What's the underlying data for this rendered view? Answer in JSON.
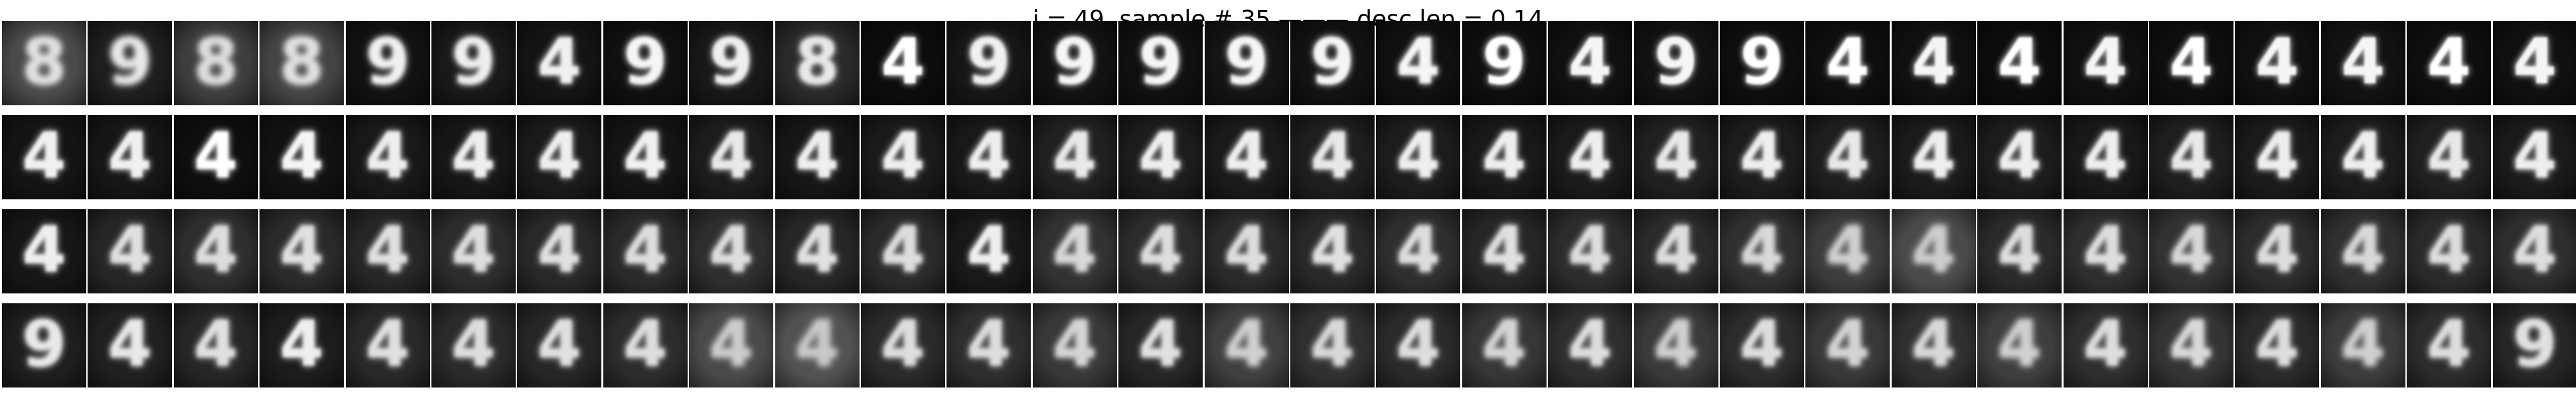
{
  "header": {
    "title": "i = 49, sample # 35 ——— desc len = 0.14"
  },
  "grid": {
    "rows": 4,
    "columns": 30,
    "tiles": [
      [
        {
          "glyph": "8",
          "background": "#4a4a4a",
          "ink": "#e0e0e0",
          "blur": 0.45
        },
        {
          "glyph": "9",
          "background": "#1e1e1e",
          "ink": "#e8e8e8",
          "blur": 0.5
        },
        {
          "glyph": "8",
          "background": "#3e3e3e",
          "ink": "#dddddd",
          "blur": 0.45
        },
        {
          "glyph": "8",
          "background": "#444444",
          "ink": "#e0e0e0",
          "blur": 0.45
        },
        {
          "glyph": "9",
          "background": "#121212",
          "ink": "#f0f0f0",
          "blur": 0.35
        },
        {
          "glyph": "9",
          "background": "#181818",
          "ink": "#eeeeee",
          "blur": 0.35
        },
        {
          "glyph": "4",
          "background": "#141414",
          "ink": "#f0f0f0",
          "blur": 0.3
        },
        {
          "glyph": "9",
          "background": "#101010",
          "ink": "#f5f5f5",
          "blur": 0.3
        },
        {
          "glyph": "9",
          "background": "#181818",
          "ink": "#eeeeee",
          "blur": 0.3
        },
        {
          "glyph": "8",
          "background": "#2a2a2a",
          "ink": "#e8e8e8",
          "blur": 0.35
        },
        {
          "glyph": "4",
          "background": "#0c0c0c",
          "ink": "#ffffff",
          "blur": 0.2
        },
        {
          "glyph": "9",
          "background": "#161616",
          "ink": "#f0f0f0",
          "blur": 0.3
        },
        {
          "glyph": "9",
          "background": "#121212",
          "ink": "#f5f5f5",
          "blur": 0.25
        },
        {
          "glyph": "9",
          "background": "#101010",
          "ink": "#f5f5f5",
          "blur": 0.25
        },
        {
          "glyph": "9",
          "background": "#141414",
          "ink": "#f5f5f5",
          "blur": 0.25
        },
        {
          "glyph": "9",
          "background": "#121212",
          "ink": "#f5f5f5",
          "blur": 0.25
        },
        {
          "glyph": "4",
          "background": "#101010",
          "ink": "#f5f5f5",
          "blur": 0.25
        },
        {
          "glyph": "9",
          "background": "#0e0e0e",
          "ink": "#ffffff",
          "blur": 0.2
        },
        {
          "glyph": "4",
          "background": "#101010",
          "ink": "#f5f5f5",
          "blur": 0.2
        },
        {
          "glyph": "9",
          "background": "#121212",
          "ink": "#f5f5f5",
          "blur": 0.2
        },
        {
          "glyph": "9",
          "background": "#0e0e0e",
          "ink": "#ffffff",
          "blur": 0.2
        },
        {
          "glyph": "4",
          "background": "#0e0e0e",
          "ink": "#ffffff",
          "blur": 0.2
        },
        {
          "glyph": "4",
          "background": "#101010",
          "ink": "#f5f5f5",
          "blur": 0.2
        },
        {
          "glyph": "4",
          "background": "#0c0c0c",
          "ink": "#ffffff",
          "blur": 0.2
        },
        {
          "glyph": "4",
          "background": "#101010",
          "ink": "#f5f5f5",
          "blur": 0.2
        },
        {
          "glyph": "4",
          "background": "#0e0e0e",
          "ink": "#ffffff",
          "blur": 0.2
        },
        {
          "glyph": "4",
          "background": "#101010",
          "ink": "#f5f5f5",
          "blur": 0.2
        },
        {
          "glyph": "4",
          "background": "#121212",
          "ink": "#f5f5f5",
          "blur": 0.2
        },
        {
          "glyph": "4",
          "background": "#0e0e0e",
          "ink": "#ffffff",
          "blur": 0.2
        },
        {
          "glyph": "4",
          "background": "#101010",
          "ink": "#f5f5f5",
          "blur": 0.2
        }
      ],
      [
        {
          "glyph": "4",
          "background": "#141414",
          "ink": "#f0f0f0",
          "blur": 0.25
        },
        {
          "glyph": "4",
          "background": "#161616",
          "ink": "#f0f0f0",
          "blur": 0.25
        },
        {
          "glyph": "4",
          "background": "#0e0e0e",
          "ink": "#ffffff",
          "blur": 0.25
        },
        {
          "glyph": "4",
          "background": "#121212",
          "ink": "#f5f5f5",
          "blur": 0.25
        },
        {
          "glyph": "4",
          "background": "#181818",
          "ink": "#eeeeee",
          "blur": 0.3
        },
        {
          "glyph": "4",
          "background": "#161616",
          "ink": "#eeeeee",
          "blur": 0.3
        },
        {
          "glyph": "4",
          "background": "#1a1a1a",
          "ink": "#eeeeee",
          "blur": 0.3
        },
        {
          "glyph": "4",
          "background": "#141414",
          "ink": "#f0f0f0",
          "blur": 0.3
        },
        {
          "glyph": "4",
          "background": "#1c1c1c",
          "ink": "#e8e8e8",
          "blur": 0.3
        },
        {
          "glyph": "4",
          "background": "#161616",
          "ink": "#eeeeee",
          "blur": 0.3
        },
        {
          "glyph": "4",
          "background": "#1a1a1a",
          "ink": "#eeeeee",
          "blur": 0.3
        },
        {
          "glyph": "4",
          "background": "#181818",
          "ink": "#eeeeee",
          "blur": 0.3
        },
        {
          "glyph": "4",
          "background": "#202020",
          "ink": "#e8e8e8",
          "blur": 0.3
        },
        {
          "glyph": "4",
          "background": "#1c1c1c",
          "ink": "#eeeeee",
          "blur": 0.3
        },
        {
          "glyph": "4",
          "background": "#1a1a1a",
          "ink": "#eeeeee",
          "blur": 0.3
        },
        {
          "glyph": "4",
          "background": "#1e1e1e",
          "ink": "#e8e8e8",
          "blur": 0.3
        },
        {
          "glyph": "4",
          "background": "#1c1c1c",
          "ink": "#eeeeee",
          "blur": 0.3
        },
        {
          "glyph": "4",
          "background": "#181818",
          "ink": "#eeeeee",
          "blur": 0.3
        },
        {
          "glyph": "4",
          "background": "#1a1a1a",
          "ink": "#eeeeee",
          "blur": 0.3
        },
        {
          "glyph": "4",
          "background": "#202020",
          "ink": "#e8e8e8",
          "blur": 0.3
        },
        {
          "glyph": "4",
          "background": "#1c1c1c",
          "ink": "#eeeeee",
          "blur": 0.3
        },
        {
          "glyph": "4",
          "background": "#1e1e1e",
          "ink": "#e8e8e8",
          "blur": 0.3
        },
        {
          "glyph": "4",
          "background": "#1a1a1a",
          "ink": "#eeeeee",
          "blur": 0.3
        },
        {
          "glyph": "4",
          "background": "#1c1c1c",
          "ink": "#eeeeee",
          "blur": 0.3
        },
        {
          "glyph": "4",
          "background": "#181818",
          "ink": "#eeeeee",
          "blur": 0.3
        },
        {
          "glyph": "4",
          "background": "#1e1e1e",
          "ink": "#e8e8e8",
          "blur": 0.3
        },
        {
          "glyph": "4",
          "background": "#1a1a1a",
          "ink": "#eeeeee",
          "blur": 0.3
        },
        {
          "glyph": "4",
          "background": "#1c1c1c",
          "ink": "#eeeeee",
          "blur": 0.3
        },
        {
          "glyph": "4",
          "background": "#202020",
          "ink": "#e8e8e8",
          "blur": 0.3
        },
        {
          "glyph": "4",
          "background": "#1a1a1a",
          "ink": "#eeeeee",
          "blur": 0.3
        }
      ],
      [
        {
          "glyph": "4",
          "background": "#161616",
          "ink": "#eeeeee",
          "blur": 0.3
        },
        {
          "glyph": "4",
          "background": "#262626",
          "ink": "#e0e0e0",
          "blur": 0.35
        },
        {
          "glyph": "4",
          "background": "#2e2e2e",
          "ink": "#dddddd",
          "blur": 0.35
        },
        {
          "glyph": "4",
          "background": "#2a2a2a",
          "ink": "#e0e0e0",
          "blur": 0.35
        },
        {
          "glyph": "4",
          "background": "#262626",
          "ink": "#e0e0e0",
          "blur": 0.35
        },
        {
          "glyph": "4",
          "background": "#2c2c2c",
          "ink": "#dddddd",
          "blur": 0.35
        },
        {
          "glyph": "4",
          "background": "#282828",
          "ink": "#e0e0e0",
          "blur": 0.35
        },
        {
          "glyph": "4",
          "background": "#2a2a2a",
          "ink": "#dddddd",
          "blur": 0.35
        },
        {
          "glyph": "4",
          "background": "#2e2e2e",
          "ink": "#dddddd",
          "blur": 0.35
        },
        {
          "glyph": "4",
          "background": "#262626",
          "ink": "#e0e0e0",
          "blur": 0.35
        },
        {
          "glyph": "4",
          "background": "#2a2a2a",
          "ink": "#dddddd",
          "blur": 0.35
        },
        {
          "glyph": "4",
          "background": "#181818",
          "ink": "#eeeeee",
          "blur": 0.3
        },
        {
          "glyph": "4",
          "background": "#323232",
          "ink": "#d8d8d8",
          "blur": 0.4
        },
        {
          "glyph": "4",
          "background": "#2c2c2c",
          "ink": "#dddddd",
          "blur": 0.35
        },
        {
          "glyph": "4",
          "background": "#2a2a2a",
          "ink": "#dddddd",
          "blur": 0.35
        },
        {
          "glyph": "4",
          "background": "#282828",
          "ink": "#e0e0e0",
          "blur": 0.35
        },
        {
          "glyph": "4",
          "background": "#2e2e2e",
          "ink": "#dddddd",
          "blur": 0.35
        },
        {
          "glyph": "4",
          "background": "#262626",
          "ink": "#e0e0e0",
          "blur": 0.35
        },
        {
          "glyph": "4",
          "background": "#2c2c2c",
          "ink": "#dddddd",
          "blur": 0.35
        },
        {
          "glyph": "4",
          "background": "#2a2a2a",
          "ink": "#dddddd",
          "blur": 0.35
        },
        {
          "glyph": "4",
          "background": "#303030",
          "ink": "#d8d8d8",
          "blur": 0.4
        },
        {
          "glyph": "4",
          "background": "#3c3c3c",
          "ink": "#d0d0d0",
          "blur": 0.45
        },
        {
          "glyph": "4",
          "background": "#4a4a4a",
          "ink": "#cccccc",
          "blur": 0.45
        },
        {
          "glyph": "4",
          "background": "#2a2a2a",
          "ink": "#dddddd",
          "blur": 0.35
        },
        {
          "glyph": "4",
          "background": "#2e2e2e",
          "ink": "#dddddd",
          "blur": 0.35
        },
        {
          "glyph": "4",
          "background": "#323232",
          "ink": "#d8d8d8",
          "blur": 0.4
        },
        {
          "glyph": "4",
          "background": "#2c2c2c",
          "ink": "#dddddd",
          "blur": 0.35
        },
        {
          "glyph": "4",
          "background": "#303030",
          "ink": "#d8d8d8",
          "blur": 0.4
        },
        {
          "glyph": "4",
          "background": "#2a2a2a",
          "ink": "#dddddd",
          "blur": 0.35
        },
        {
          "glyph": "4",
          "background": "#2e2e2e",
          "ink": "#dddddd",
          "blur": 0.35
        }
      ],
      [
        {
          "glyph": "9",
          "background": "#1e1e1e",
          "ink": "#e8e8e8",
          "blur": 0.35
        },
        {
          "glyph": "4",
          "background": "#202020",
          "ink": "#e8e8e8",
          "blur": 0.35
        },
        {
          "glyph": "4",
          "background": "#262626",
          "ink": "#e0e0e0",
          "blur": 0.35
        },
        {
          "glyph": "4",
          "background": "#1c1c1c",
          "ink": "#eeeeee",
          "blur": 0.3
        },
        {
          "glyph": "4",
          "background": "#282828",
          "ink": "#e0e0e0",
          "blur": 0.35
        },
        {
          "glyph": "4",
          "background": "#2a2a2a",
          "ink": "#dddddd",
          "blur": 0.35
        },
        {
          "glyph": "4",
          "background": "#262626",
          "ink": "#e0e0e0",
          "blur": 0.35
        },
        {
          "glyph": "4",
          "background": "#2c2c2c",
          "ink": "#dddddd",
          "blur": 0.35
        },
        {
          "glyph": "4",
          "background": "#4a4a4a",
          "ink": "#cccccc",
          "blur": 0.45
        },
        {
          "glyph": "4",
          "background": "#525252",
          "ink": "#c8c8c8",
          "blur": 0.5
        },
        {
          "glyph": "4",
          "background": "#2a2a2a",
          "ink": "#dddddd",
          "blur": 0.35
        },
        {
          "glyph": "4",
          "background": "#2e2e2e",
          "ink": "#dddddd",
          "blur": 0.35
        },
        {
          "glyph": "4",
          "background": "#383838",
          "ink": "#d4d4d4",
          "blur": 0.4
        },
        {
          "glyph": "4",
          "background": "#262626",
          "ink": "#e0e0e0",
          "blur": 0.35
        },
        {
          "glyph": "4",
          "background": "#404040",
          "ink": "#d0d0d0",
          "blur": 0.45
        },
        {
          "glyph": "4",
          "background": "#303030",
          "ink": "#d8d8d8",
          "blur": 0.4
        },
        {
          "glyph": "4",
          "background": "#2a2a2a",
          "ink": "#dddddd",
          "blur": 0.35
        },
        {
          "glyph": "4",
          "background": "#363636",
          "ink": "#d4d4d4",
          "blur": 0.4
        },
        {
          "glyph": "4",
          "background": "#2e2e2e",
          "ink": "#dddddd",
          "blur": 0.35
        },
        {
          "glyph": "4",
          "background": "#3a3a3a",
          "ink": "#d0d0d0",
          "blur": 0.45
        },
        {
          "glyph": "4",
          "background": "#2c2c2c",
          "ink": "#dddddd",
          "blur": 0.35
        },
        {
          "glyph": "4",
          "background": "#383838",
          "ink": "#d4d4d4",
          "blur": 0.4
        },
        {
          "glyph": "4",
          "background": "#303030",
          "ink": "#d8d8d8",
          "blur": 0.4
        },
        {
          "glyph": "4",
          "background": "#3e3e3e",
          "ink": "#d0d0d0",
          "blur": 0.45
        },
        {
          "glyph": "4",
          "background": "#2e2e2e",
          "ink": "#dddddd",
          "blur": 0.35
        },
        {
          "glyph": "4",
          "background": "#343434",
          "ink": "#d8d8d8",
          "blur": 0.4
        },
        {
          "glyph": "4",
          "background": "#2a2a2a",
          "ink": "#dddddd",
          "blur": 0.35
        },
        {
          "glyph": "4",
          "background": "#3c3c3c",
          "ink": "#d0d0d0",
          "blur": 0.45
        },
        {
          "glyph": "4",
          "background": "#2c2c2c",
          "ink": "#dddddd",
          "blur": 0.35
        },
        {
          "glyph": "9",
          "background": "#262626",
          "ink": "#e0e0e0",
          "blur": 0.35
        }
      ]
    ]
  }
}
